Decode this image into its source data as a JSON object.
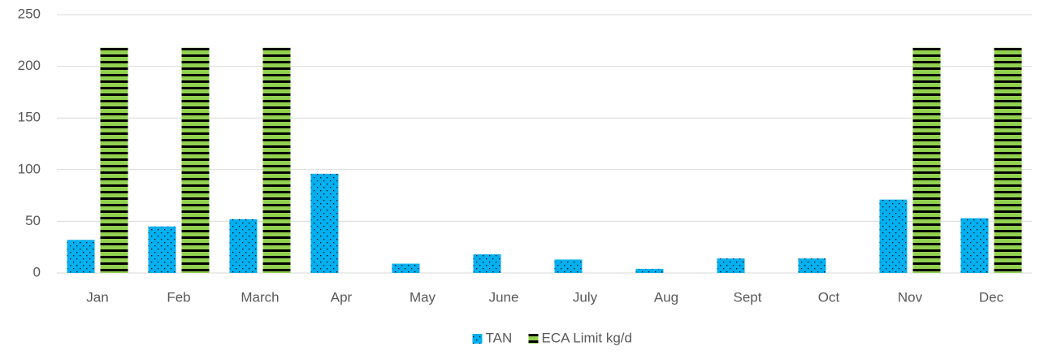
{
  "chart_data": {
    "type": "bar",
    "categories": [
      "Jan",
      "Feb",
      "March",
      "Apr",
      "May",
      "June",
      "July",
      "Aug",
      "Sept",
      "Oct",
      "Nov",
      "Dec"
    ],
    "series": [
      {
        "name": "TAN",
        "color": "#00b0f0",
        "values": [
          32,
          45,
          52,
          96,
          9,
          18,
          13,
          4,
          14,
          14,
          71,
          53
        ]
      },
      {
        "name": "ECA Limit kg/d",
        "color": "#92d050",
        "values": [
          218,
          218,
          218,
          null,
          null,
          null,
          null,
          null,
          null,
          null,
          218,
          218
        ]
      }
    ],
    "ylim": [
      0,
      250
    ],
    "yticks": [
      0,
      50,
      100,
      150,
      200,
      250
    ],
    "grid": true,
    "legend": "bottom"
  }
}
